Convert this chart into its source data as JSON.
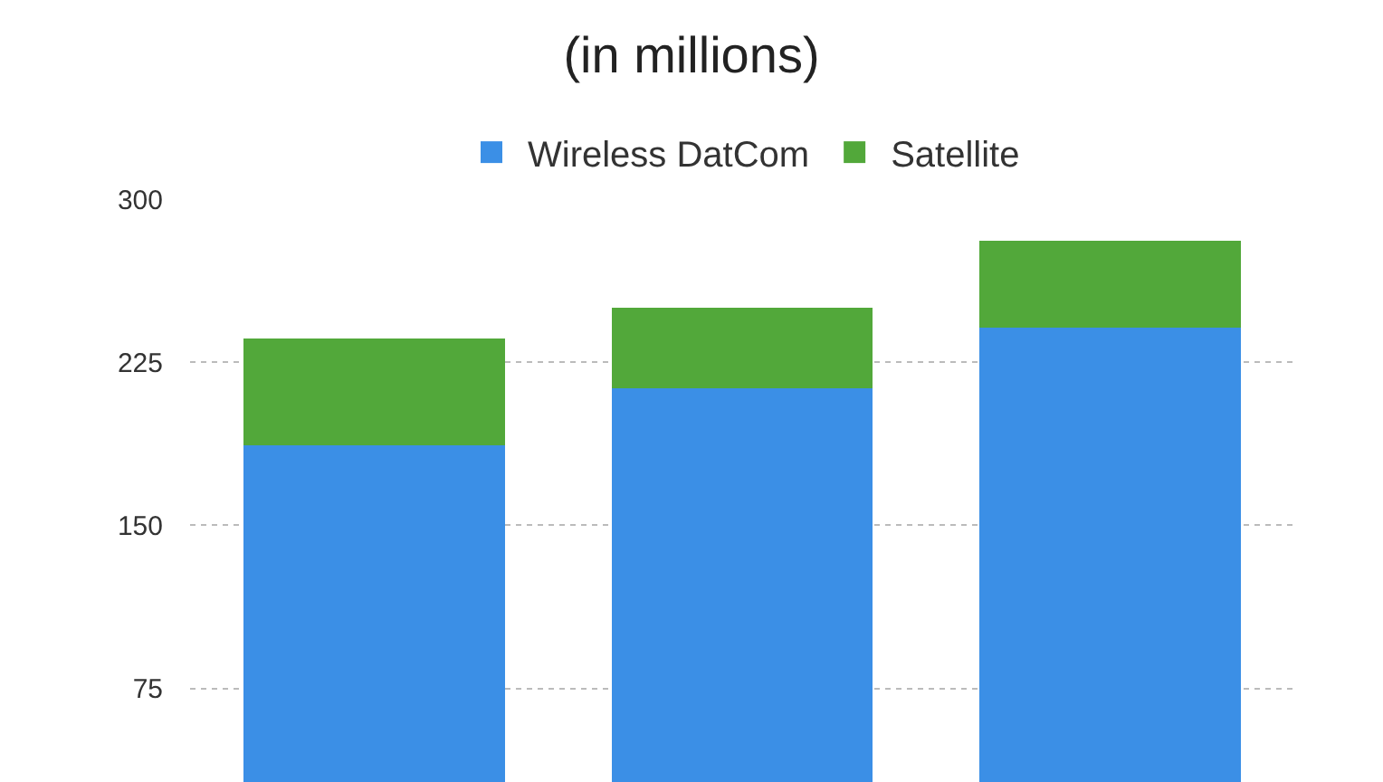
{
  "chart_data": {
    "type": "bar",
    "title": "(in millions)",
    "categories": [
      null,
      null,
      null
    ],
    "stacked": true,
    "series": [
      {
        "name": "Wireless DatCom",
        "color": "#3b8fe6",
        "values": [
          187,
          213,
          241
        ]
      },
      {
        "name": "Satellite",
        "color": "#52a83a",
        "values": [
          49,
          37,
          40
        ]
      }
    ],
    "ylim": [
      32,
      300
    ],
    "yticks": [
      75,
      150,
      225,
      300
    ],
    "grid": "y",
    "legend": "top"
  }
}
